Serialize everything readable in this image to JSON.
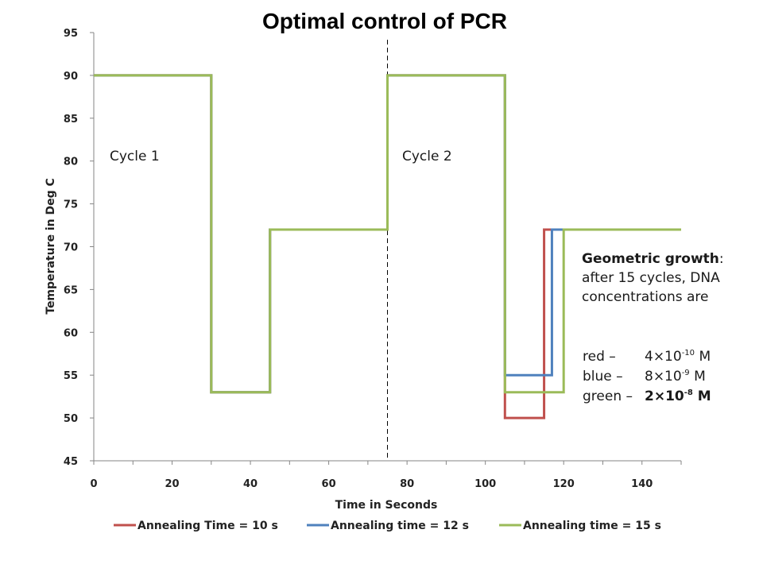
{
  "chart_data": {
    "type": "line",
    "title": "Optimal control of PCR",
    "xlabel": "Time in Seconds",
    "ylabel": "Temperature in Deg C",
    "xlim": [
      0,
      150
    ],
    "ylim": [
      45,
      95
    ],
    "xticks": [
      0,
      20,
      40,
      60,
      80,
      100,
      120,
      140
    ],
    "yticks": [
      45,
      50,
      55,
      60,
      65,
      70,
      75,
      80,
      85,
      90,
      95
    ],
    "grid": false,
    "legend_position": "bottom",
    "series": [
      {
        "name": "Annealing Time = 10 s",
        "color": "#c0504d",
        "x": [
          0,
          30,
          30,
          45,
          45,
          75,
          75,
          105,
          105,
          115,
          115,
          150
        ],
        "y": [
          90,
          90,
          53,
          53,
          72,
          72,
          90,
          90,
          50,
          50,
          72,
          72
        ]
      },
      {
        "name": "Annealing time = 12 s",
        "color": "#4f81bd",
        "x": [
          0,
          30,
          30,
          45,
          45,
          75,
          75,
          105,
          105,
          117,
          117,
          150
        ],
        "y": [
          90,
          90,
          53,
          53,
          72,
          72,
          90,
          90,
          55,
          55,
          72,
          72
        ]
      },
      {
        "name": "Annealing time = 15 s",
        "color": "#9bbb59",
        "x": [
          0,
          30,
          30,
          45,
          45,
          75,
          75,
          105,
          105,
          120,
          120,
          150
        ],
        "y": [
          90,
          90,
          53,
          53,
          72,
          72,
          90,
          90,
          53,
          53,
          72,
          72
        ]
      }
    ],
    "divider_x": 75,
    "annotations": {
      "cycle1": "Cycle 1",
      "cycle2": "Cycle 2",
      "growth_heading": "Geometric growth",
      "growth_colon": ":",
      "growth_body": "after 15 cycles, DNA concentrations are",
      "conc": [
        {
          "label": "red –",
          "mantissa": "4×10",
          "exponent": "-10",
          "unit": " M",
          "bold": false
        },
        {
          "label": "blue –",
          "mantissa": "8×10",
          "exponent": "-9",
          "unit": " M",
          "bold": false
        },
        {
          "label": "green – ",
          "mantissa": "2×10",
          "exponent": "-8",
          "unit": " M",
          "bold": true
        }
      ]
    }
  }
}
